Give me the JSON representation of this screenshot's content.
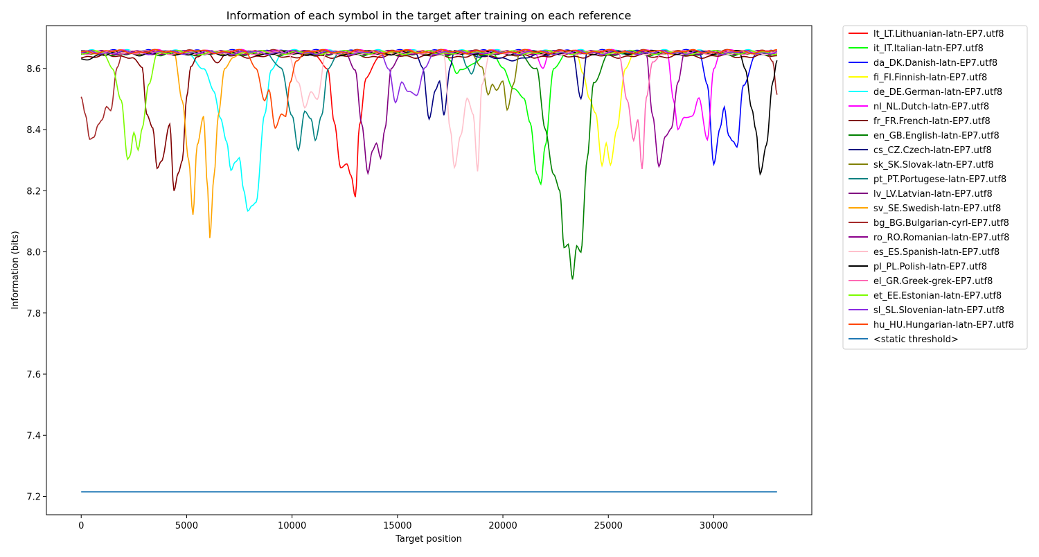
{
  "chart_data": {
    "type": "line",
    "title": "Information of each symbol in the target after training on each reference",
    "xlabel": "Target position",
    "ylabel": "Information (bits)",
    "xlim": [
      -1650,
      34650
    ],
    "ylim": [
      7.14,
      8.74
    ],
    "xticks": [
      0,
      5000,
      10000,
      15000,
      20000,
      25000,
      30000
    ],
    "yticks": [
      7.2,
      7.4,
      7.6,
      7.8,
      8.0,
      8.2,
      8.4,
      8.6
    ],
    "grid": false,
    "legend_position": "outside-right",
    "series": [
      {
        "name": "lt_LT.Lithuanian-latn-EP7.utf8",
        "color": "#ff0000",
        "base": 8.652,
        "x": [
          11000,
          11700,
          12000,
          12300,
          12600,
          12800,
          13000,
          13200,
          13500,
          14200,
          15000
        ],
        "y": [
          8.652,
          8.6,
          8.42,
          8.27,
          8.29,
          8.25,
          8.18,
          8.42,
          8.57,
          8.64,
          8.652
        ]
      },
      {
        "name": "it_IT.Italian-latn-EP7.utf8",
        "color": "#00ff00",
        "base": 8.652,
        "x": [
          17300,
          17500,
          17800,
          18000,
          19500,
          20000,
          20500,
          21000,
          21300,
          21600,
          21800,
          22000,
          22400,
          23000
        ],
        "y": [
          8.652,
          8.62,
          8.58,
          8.6,
          8.652,
          8.6,
          8.54,
          8.5,
          8.42,
          8.25,
          8.22,
          8.35,
          8.6,
          8.652
        ]
      },
      {
        "name": "da_DK.Danish-latn-EP7.utf8",
        "color": "#0000ff",
        "base": 8.655,
        "x": [
          29300,
          29700,
          30000,
          30300,
          30500,
          30700,
          30900,
          31100,
          31400,
          32000,
          33000
        ],
        "y": [
          8.655,
          8.55,
          8.29,
          8.4,
          8.47,
          8.38,
          8.36,
          8.34,
          8.55,
          8.645,
          8.655
        ]
      },
      {
        "name": "fi_FI.Finnish-latn-EP7.utf8",
        "color": "#ffff00",
        "base": 8.652,
        "x": [
          23500,
          23800,
          24100,
          24400,
          24700,
          24900,
          25100,
          25400,
          25800,
          26300
        ],
        "y": [
          8.652,
          8.58,
          8.5,
          8.45,
          8.28,
          8.36,
          8.29,
          8.4,
          8.6,
          8.652
        ]
      },
      {
        "name": "de_DE.German-latn-EP7.utf8",
        "color": "#00ffff",
        "base": 8.655,
        "x": [
          5000,
          5800,
          6300,
          6600,
          6900,
          7100,
          7300,
          7500,
          7700,
          7900,
          8100,
          8300,
          8700,
          9000,
          9600
        ],
        "y": [
          8.655,
          8.6,
          8.52,
          8.44,
          8.36,
          8.27,
          8.3,
          8.31,
          8.2,
          8.13,
          8.15,
          8.16,
          8.45,
          8.6,
          8.655
        ]
      },
      {
        "name": "nl_NL.Dutch-latn-EP7.utf8",
        "color": "#ff00ff",
        "base": 8.655,
        "x": [
          21500,
          21900,
          22200,
          27800,
          28100,
          28300,
          28600,
          29000,
          29300,
          29700,
          30000,
          30300
        ],
        "y": [
          8.655,
          8.6,
          8.655,
          8.655,
          8.5,
          8.4,
          8.44,
          8.44,
          8.5,
          8.37,
          8.6,
          8.655
        ]
      },
      {
        "name": "fr_FR.French-latn-EP7.utf8",
        "color": "#800000",
        "base": 8.64,
        "x": [
          2000,
          2400,
          2900,
          3100,
          3400,
          3600,
          3800,
          4200,
          4400,
          4600,
          4800,
          5000,
          5200,
          5500,
          6000,
          6500,
          7000
        ],
        "y": [
          8.64,
          8.64,
          8.6,
          8.45,
          8.4,
          8.27,
          8.3,
          8.42,
          8.2,
          8.26,
          8.3,
          8.5,
          8.6,
          8.64,
          8.655,
          8.62,
          8.655
        ]
      },
      {
        "name": "en_GB.English-latn-EP7.utf8",
        "color": "#008000",
        "base": 8.648,
        "x": [
          20800,
          21600,
          22000,
          22400,
          22700,
          22900,
          23100,
          23300,
          23500,
          23700,
          24000,
          24300,
          25000
        ],
        "y": [
          8.648,
          8.6,
          8.4,
          8.25,
          8.2,
          8.02,
          8.03,
          7.91,
          8.02,
          8.0,
          8.3,
          8.55,
          8.648
        ]
      },
      {
        "name": "cs_CZ.Czech-latn-EP7.utf8",
        "color": "#000080",
        "base": 8.652,
        "x": [
          15800,
          16200,
          16500,
          16800,
          17000,
          17200,
          17500,
          17700,
          18000,
          20000,
          23300,
          23700,
          24000
        ],
        "y": [
          8.652,
          8.6,
          8.44,
          8.53,
          8.56,
          8.45,
          8.6,
          8.652,
          8.652,
          8.63,
          8.652,
          8.5,
          8.652
        ]
      },
      {
        "name": "sk_SK.Slovak-latn-EP7.utf8",
        "color": "#808000",
        "base": 8.652,
        "x": [
          18500,
          19000,
          19300,
          19500,
          19700,
          20000,
          20200,
          20500,
          20800
        ],
        "y": [
          8.652,
          8.6,
          8.51,
          8.55,
          8.53,
          8.56,
          8.47,
          8.55,
          8.652
        ]
      },
      {
        "name": "pt_PT.Portugese-latn-EP7.utf8",
        "color": "#008080",
        "base": 8.652,
        "x": [
          8700,
          9500,
          10000,
          10300,
          10600,
          10900,
          11100,
          11400,
          11700,
          12200,
          18000,
          18300,
          18500,
          18900
        ],
        "y": [
          8.652,
          8.6,
          8.45,
          8.33,
          8.46,
          8.43,
          8.36,
          8.45,
          8.6,
          8.652,
          8.652,
          8.6,
          8.58,
          8.652
        ]
      },
      {
        "name": "lv_LV.Latvian-latn-EP7.utf8",
        "color": "#800080",
        "base": 8.652,
        "x": [
          12500,
          13000,
          13300,
          13600,
          13800,
          14000,
          14200,
          14400,
          14700,
          15200
        ],
        "y": [
          8.652,
          8.6,
          8.42,
          8.26,
          8.33,
          8.35,
          8.3,
          8.4,
          8.6,
          8.652
        ]
      },
      {
        "name": "sv_SE.Swedish-latn-EP7.utf8",
        "color": "#ffa500",
        "base": 8.652,
        "x": [
          4400,
          4800,
          5100,
          5300,
          5500,
          5800,
          6000,
          6100,
          6300,
          6500,
          6800,
          7200,
          8000
        ],
        "y": [
          8.652,
          8.5,
          8.3,
          8.12,
          8.35,
          8.44,
          8.2,
          8.04,
          8.25,
          8.45,
          8.6,
          8.64,
          8.652
        ]
      },
      {
        "name": "bg_BG.Bulgarian-cyrl-EP7.utf8",
        "color": "#a52a2a",
        "base": 8.655,
        "x": [
          0,
          200,
          400,
          600,
          800,
          1000,
          1200,
          1400,
          1700,
          2000,
          32500,
          32800,
          33000
        ],
        "y": [
          8.51,
          8.45,
          8.37,
          8.38,
          8.42,
          8.43,
          8.47,
          8.46,
          8.6,
          8.655,
          8.655,
          8.62,
          8.51
        ]
      },
      {
        "name": "ro_RO.Romanian-latn-EP7.utf8",
        "color": "#8b008b",
        "base": 8.652,
        "x": [
          26800,
          27100,
          27400,
          27700,
          28000,
          28300,
          28600
        ],
        "y": [
          8.652,
          8.45,
          8.28,
          8.38,
          8.4,
          8.55,
          8.652
        ]
      },
      {
        "name": "es_ES.Spanish-latn-EP7.utf8",
        "color": "#ffc0cb",
        "base": 8.652,
        "x": [
          9800,
          10300,
          10600,
          10900,
          11200,
          11600,
          17200,
          17500,
          17700,
          18000,
          18300,
          18600,
          18800,
          19000,
          19400
        ],
        "y": [
          8.652,
          8.55,
          8.47,
          8.53,
          8.5,
          8.652,
          8.652,
          8.4,
          8.27,
          8.38,
          8.5,
          8.45,
          8.27,
          8.55,
          8.652
        ]
      },
      {
        "name": "pl_PL.Polish-latn-EP7.utf8",
        "color": "#000000",
        "base": 8.652,
        "x": [
          0,
          1000,
          31200,
          31500,
          31800,
          32000,
          32200,
          32500,
          32800,
          33000
        ],
        "y": [
          8.625,
          8.648,
          8.652,
          8.6,
          8.47,
          8.4,
          8.26,
          8.35,
          8.55,
          8.625
        ]
      },
      {
        "name": "el_GR.Greek-grek-EP7.utf8",
        "color": "#ff69b4",
        "base": 8.652,
        "x": [
          25500,
          25900,
          26200,
          26400,
          26600,
          26800,
          27100,
          27500
        ],
        "y": [
          8.652,
          8.5,
          8.36,
          8.43,
          8.27,
          8.5,
          8.62,
          8.652
        ]
      },
      {
        "name": "et_EE.Estonian-latn-EP7.utf8",
        "color": "#7cfc00",
        "base": 8.652,
        "x": [
          1000,
          1500,
          1900,
          2200,
          2300,
          2500,
          2700,
          2900,
          3200,
          3600
        ],
        "y": [
          8.652,
          8.6,
          8.5,
          8.3,
          8.31,
          8.39,
          8.33,
          8.4,
          8.55,
          8.652
        ]
      },
      {
        "name": "sl_SL.Slovenian-latn-EP7.utf8",
        "color": "#8a2be2",
        "base": 8.652,
        "x": [
          14200,
          14600,
          14900,
          15200,
          15500,
          15900,
          16300,
          16700
        ],
        "y": [
          8.652,
          8.6,
          8.49,
          8.56,
          8.52,
          8.51,
          8.6,
          8.652
        ]
      },
      {
        "name": "hu_HU.Hungarian-latn-EP7.utf8",
        "color": "#ff4500",
        "base": 8.655,
        "x": [
          7800,
          8300,
          8700,
          8900,
          9200,
          9500,
          9700,
          9900,
          10200,
          10600
        ],
        "y": [
          8.655,
          8.6,
          8.5,
          8.53,
          8.4,
          8.45,
          8.44,
          8.55,
          8.63,
          8.655
        ]
      },
      {
        "name": "<static threshold>",
        "color": "#1f77b4",
        "base": 7.215,
        "x": [
          0,
          33000
        ],
        "y": [
          7.215,
          7.215
        ]
      }
    ]
  }
}
